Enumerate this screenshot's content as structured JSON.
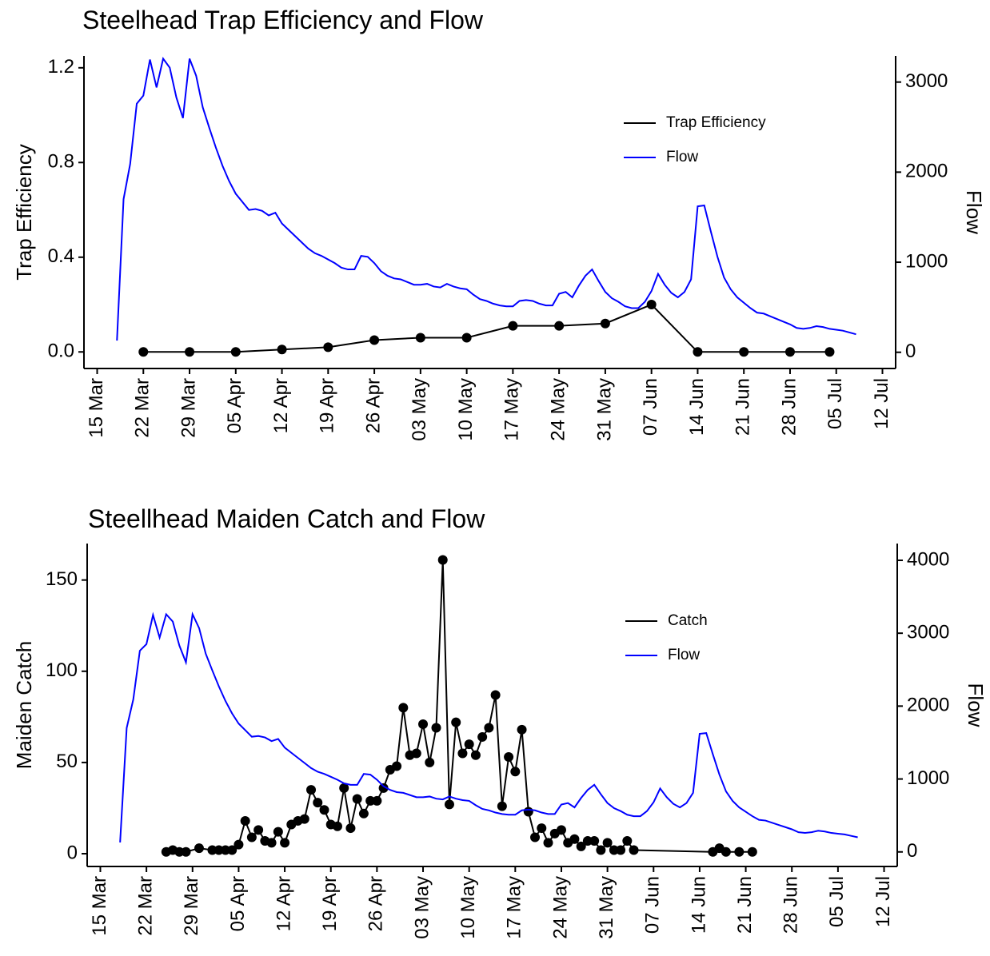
{
  "chart_data": [
    {
      "type": "line",
      "title": "Steelhead Trap Efficiency and Flow",
      "ylabel": "Trap Efficiency",
      "y2label": "Flow",
      "legend": "upper right",
      "xlim": [
        "13 Mar",
        "14 Jul"
      ],
      "xticks": [
        "15 Mar",
        "22 Mar",
        "29 Mar",
        "05 Apr",
        "12 Apr",
        "19 Apr",
        "26 Apr",
        "03 May",
        "10 May",
        "17 May",
        "24 May",
        "31 May",
        "07 Jun",
        "14 Jun",
        "21 Jun",
        "28 Jun",
        "05 Jul",
        "12 Jul"
      ],
      "ylim": [
        -0.07,
        1.25
      ],
      "yticks": [
        {
          "value": 0,
          "label": "0.0"
        },
        0.4,
        0.8,
        1.2
      ],
      "y2lim": [
        -180,
        3290
      ],
      "y2ticks": [
        0,
        1000,
        2000,
        3000
      ],
      "series": [
        {
          "name": "Trap Efficiency",
          "color": "#000000",
          "markers": true,
          "x": [
            "22 Mar",
            "29 Mar",
            "05 Apr",
            "12 Apr",
            "19 Apr",
            "26 Apr",
            "03 May",
            "10 May",
            "17 May",
            "24 May",
            "31 May",
            "07 Jun",
            "14 Jun",
            "21 Jun",
            "28 Jun",
            "04 Jul"
          ],
          "values": [
            0,
            0,
            0,
            0.01,
            0.02,
            0.05,
            0.06,
            0.06,
            0.11,
            0.11,
            0.12,
            0.2,
            0,
            0,
            0,
            0
          ]
        },
        {
          "name": "Flow",
          "color": "#0000ff",
          "axis": "y2",
          "x": [
            "18 Mar",
            "19 Mar",
            "20 Mar",
            "21 Mar",
            "22 Mar",
            "23 Mar",
            "24 Mar",
            "25 Mar",
            "26 Mar",
            "27 Mar",
            "28 Mar",
            "29 Mar",
            "30 Mar",
            "31 Mar",
            "01 Apr",
            "02 Apr",
            "03 Apr",
            "04 Apr",
            "05 Apr",
            "06 Apr",
            "07 Apr",
            "08 Apr",
            "09 Apr",
            "10 Apr",
            "11 Apr",
            "12 Apr",
            "13 Apr",
            "14 Apr",
            "15 Apr",
            "16 Apr",
            "17 Apr",
            "18 Apr",
            "19 Apr",
            "20 Apr",
            "21 Apr",
            "22 Apr",
            "23 Apr",
            "24 Apr",
            "25 Apr",
            "26 Apr",
            "27 Apr",
            "28 Apr",
            "29 Apr",
            "30 Apr",
            "01 May",
            "02 May",
            "03 May",
            "04 May",
            "05 May",
            "06 May",
            "07 May",
            "08 May",
            "09 May",
            "10 May",
            "11 May",
            "12 May",
            "13 May",
            "14 May",
            "15 May",
            "16 May",
            "17 May",
            "18 May",
            "19 May",
            "20 May",
            "21 May",
            "22 May",
            "23 May",
            "24 May",
            "25 May",
            "26 May",
            "27 May",
            "28 May",
            "29 May",
            "30 May",
            "31 May",
            "01 Jun",
            "02 Jun",
            "03 Jun",
            "04 Jun",
            "05 Jun",
            "06 Jun",
            "07 Jun",
            "08 Jun",
            "09 Jun",
            "10 Jun",
            "11 Jun",
            "12 Jun",
            "13 Jun",
            "14 Jun",
            "15 Jun",
            "16 Jun",
            "17 Jun",
            "18 Jun",
            "19 Jun",
            "20 Jun",
            "21 Jun",
            "22 Jun",
            "23 Jun",
            "24 Jun",
            "25 Jun",
            "26 Jun",
            "27 Jun",
            "28 Jun",
            "29 Jun",
            "30 Jun",
            "01 Jul",
            "02 Jul",
            "03 Jul",
            "04 Jul",
            "05 Jul",
            "06 Jul",
            "07 Jul",
            "08 Jul"
          ],
          "values": [
            130,
            1700,
            2090,
            2760,
            2850,
            3250,
            2940,
            3260,
            3160,
            2830,
            2600,
            3260,
            3070,
            2720,
            2490,
            2270,
            2070,
            1900,
            1760,
            1670,
            1580,
            1590,
            1570,
            1520,
            1550,
            1430,
            1360,
            1290,
            1220,
            1150,
            1100,
            1070,
            1030,
            990,
            940,
            920,
            920,
            1070,
            1060,
            990,
            900,
            850,
            820,
            810,
            780,
            750,
            750,
            760,
            730,
            720,
            760,
            730,
            710,
            700,
            640,
            590,
            570,
            540,
            520,
            510,
            510,
            570,
            580,
            570,
            540,
            520,
            520,
            650,
            670,
            610,
            740,
            850,
            920,
            790,
            670,
            600,
            560,
            510,
            490,
            490,
            560,
            680,
            870,
            750,
            660,
            610,
            670,
            810,
            1620,
            1630,
            1340,
            1060,
            830,
            700,
            610,
            550,
            490,
            440,
            430,
            400,
            370,
            340,
            310,
            270,
            260,
            270,
            290,
            280,
            260,
            250,
            240,
            220,
            200
          ]
        }
      ]
    },
    {
      "type": "line",
      "title": "Steellhead Maiden Catch and Flow",
      "ylabel": "Maiden Catch",
      "y2label": "Flow",
      "legend": "upper right",
      "xlim": [
        "13 Mar",
        "14 Jul"
      ],
      "xticks": [
        "15 Mar",
        "22 Mar",
        "29 Mar",
        "05 Apr",
        "12 Apr",
        "19 Apr",
        "26 Apr",
        "03 May",
        "10 May",
        "17 May",
        "24 May",
        "31 May",
        "07 Jun",
        "14 Jun",
        "21 Jun",
        "28 Jun",
        "05 Jul",
        "12 Jul"
      ],
      "ylim": [
        -7,
        170
      ],
      "yticks": [
        0,
        50,
        100,
        150
      ],
      "y2lim": [
        -200,
        4230
      ],
      "y2ticks": [
        0,
        1000,
        2000,
        3000,
        4000
      ],
      "series": [
        {
          "name": "Catch",
          "color": "#000000",
          "markers": true,
          "x": [
            "25 Mar",
            "26 Mar",
            "27 Mar",
            "28 Mar",
            "30 Mar",
            "01 Apr",
            "02 Apr",
            "03 Apr",
            "04 Apr",
            "05 Apr",
            "06 Apr",
            "07 Apr",
            "08 Apr",
            "09 Apr",
            "10 Apr",
            "11 Apr",
            "12 Apr",
            "13 Apr",
            "14 Apr",
            "15 Apr",
            "16 Apr",
            "17 Apr",
            "18 Apr",
            "19 Apr",
            "20 Apr",
            "21 Apr",
            "22 Apr",
            "23 Apr",
            "24 Apr",
            "25 Apr",
            "26 Apr",
            "27 Apr",
            "28 Apr",
            "29 Apr",
            "30 Apr",
            "01 May",
            "02 May",
            "03 May",
            "04 May",
            "05 May",
            "06 May",
            "07 May",
            "08 May",
            "09 May",
            "10 May",
            "11 May",
            "12 May",
            "13 May",
            "14 May",
            "15 May",
            "16 May",
            "17 May",
            "18 May",
            "19 May",
            "20 May",
            "21 May",
            "22 May",
            "23 May",
            "24 May",
            "25 May",
            "26 May",
            "27 May",
            "28 May",
            "29 May",
            "30 May",
            "31 May",
            "01 Jun",
            "02 Jun",
            "03 Jun",
            "04 Jun",
            "16 Jun",
            "17 Jun",
            "18 Jun",
            "20 Jun",
            "22 Jun"
          ],
          "values": [
            1,
            2,
            1,
            1,
            3,
            2,
            2,
            2,
            2,
            5,
            18,
            9,
            13,
            7,
            6,
            12,
            6,
            16,
            18,
            19,
            35,
            28,
            24,
            16,
            15,
            36,
            14,
            30,
            22,
            29,
            29,
            36,
            46,
            48,
            80,
            54,
            55,
            71,
            50,
            69,
            161,
            27,
            72,
            55,
            60,
            54,
            64,
            69,
            87,
            26,
            53,
            45,
            68,
            23,
            9,
            14,
            6,
            11,
            13,
            6,
            8,
            4,
            7,
            7,
            2,
            6,
            2,
            2,
            7,
            2,
            1,
            3,
            1,
            1,
            1
          ]
        },
        {
          "name": "Flow",
          "color": "#0000ff",
          "axis": "y2",
          "x": [
            "18 Mar",
            "19 Mar",
            "20 Mar",
            "21 Mar",
            "22 Mar",
            "23 Mar",
            "24 Mar",
            "25 Mar",
            "26 Mar",
            "27 Mar",
            "28 Mar",
            "29 Mar",
            "30 Mar",
            "31 Mar",
            "01 Apr",
            "02 Apr",
            "03 Apr",
            "04 Apr",
            "05 Apr",
            "06 Apr",
            "07 Apr",
            "08 Apr",
            "09 Apr",
            "10 Apr",
            "11 Apr",
            "12 Apr",
            "13 Apr",
            "14 Apr",
            "15 Apr",
            "16 Apr",
            "17 Apr",
            "18 Apr",
            "19 Apr",
            "20 Apr",
            "21 Apr",
            "22 Apr",
            "23 Apr",
            "24 Apr",
            "25 Apr",
            "26 Apr",
            "27 Apr",
            "28 Apr",
            "29 Apr",
            "30 Apr",
            "01 May",
            "02 May",
            "03 May",
            "04 May",
            "05 May",
            "06 May",
            "07 May",
            "08 May",
            "09 May",
            "10 May",
            "11 May",
            "12 May",
            "13 May",
            "14 May",
            "15 May",
            "16 May",
            "17 May",
            "18 May",
            "19 May",
            "20 May",
            "21 May",
            "22 May",
            "23 May",
            "24 May",
            "25 May",
            "26 May",
            "27 May",
            "28 May",
            "29 May",
            "30 May",
            "31 May",
            "01 Jun",
            "02 Jun",
            "03 Jun",
            "04 Jun",
            "05 Jun",
            "06 Jun",
            "07 Jun",
            "08 Jun",
            "09 Jun",
            "10 Jun",
            "11 Jun",
            "12 Jun",
            "13 Jun",
            "14 Jun",
            "15 Jun",
            "16 Jun",
            "17 Jun",
            "18 Jun",
            "19 Jun",
            "20 Jun",
            "21 Jun",
            "22 Jun",
            "23 Jun",
            "24 Jun",
            "25 Jun",
            "26 Jun",
            "27 Jun",
            "28 Jun",
            "29 Jun",
            "30 Jun",
            "01 Jul",
            "02 Jul",
            "03 Jul",
            "04 Jul",
            "05 Jul",
            "06 Jul",
            "07 Jul",
            "08 Jul"
          ],
          "values": [
            130,
            1700,
            2090,
            2760,
            2850,
            3250,
            2940,
            3260,
            3160,
            2830,
            2600,
            3260,
            3070,
            2720,
            2490,
            2270,
            2070,
            1900,
            1760,
            1670,
            1580,
            1590,
            1570,
            1520,
            1550,
            1430,
            1360,
            1290,
            1220,
            1150,
            1100,
            1070,
            1030,
            990,
            940,
            920,
            920,
            1070,
            1060,
            990,
            900,
            850,
            820,
            810,
            780,
            750,
            750,
            760,
            730,
            720,
            760,
            730,
            710,
            700,
            640,
            590,
            570,
            540,
            520,
            510,
            510,
            570,
            580,
            570,
            540,
            520,
            520,
            650,
            670,
            610,
            740,
            850,
            920,
            790,
            670,
            600,
            560,
            510,
            490,
            490,
            560,
            680,
            870,
            750,
            660,
            610,
            670,
            810,
            1620,
            1630,
            1340,
            1060,
            830,
            700,
            610,
            550,
            490,
            440,
            430,
            400,
            370,
            340,
            310,
            270,
            260,
            270,
            290,
            280,
            260,
            250,
            240,
            220,
            200
          ]
        }
      ]
    }
  ]
}
